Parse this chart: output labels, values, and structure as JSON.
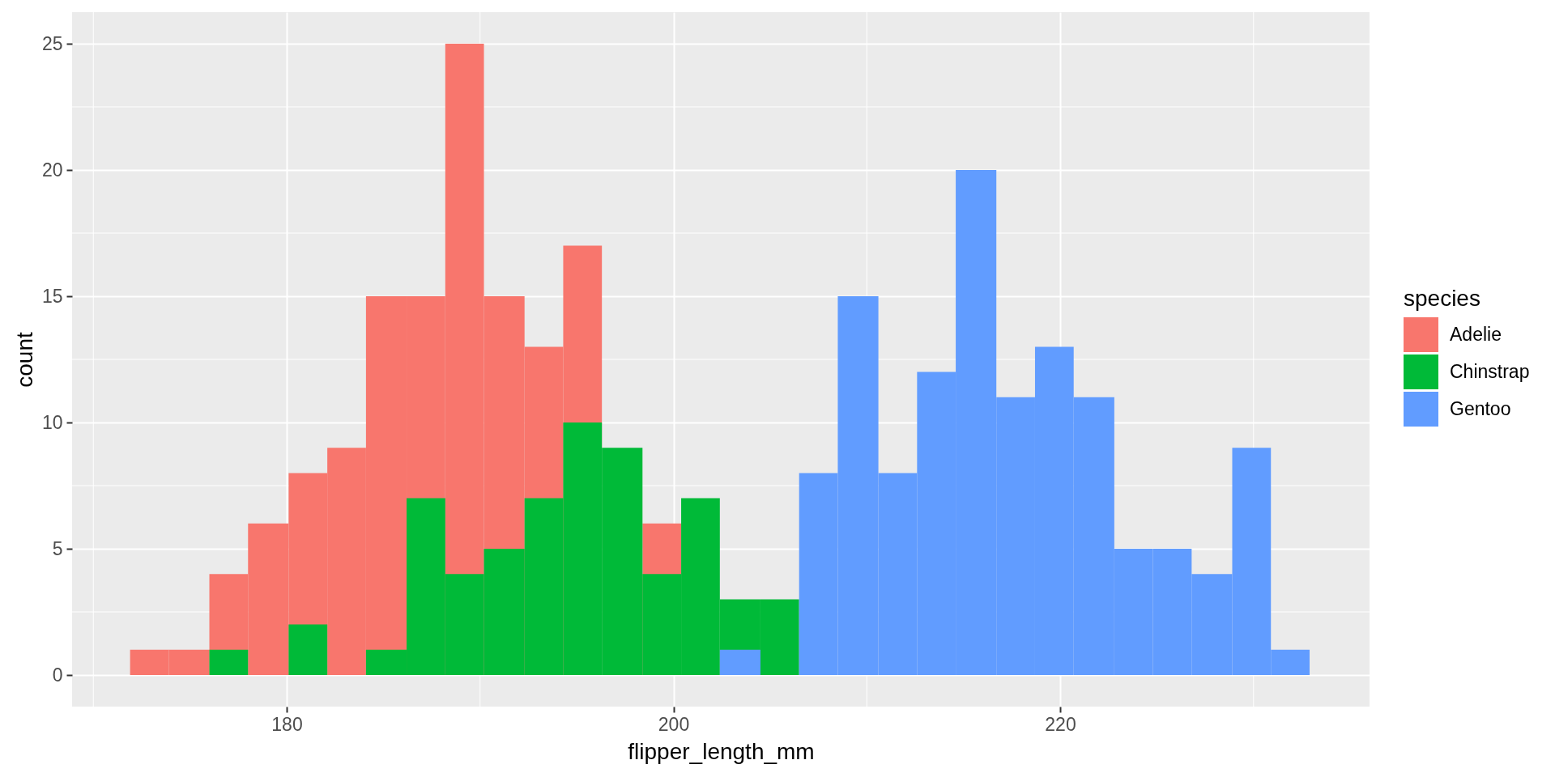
{
  "chart_data": {
    "type": "histogram",
    "xlabel": "flipper_length_mm",
    "ylabel": "count",
    "legend_title": "species",
    "legend": "right",
    "grid": true,
    "xlim": [
      168.9,
      236.0
    ],
    "xticks": [
      180,
      200,
      220
    ],
    "ylim": [
      -1.25,
      26.25
    ],
    "yticks": [
      0,
      5,
      10,
      15,
      20,
      25
    ],
    "bins": [
      171.9,
      173.9,
      176.0,
      178.0,
      180.1,
      182.1,
      184.1,
      186.2,
      188.2,
      190.2,
      192.3,
      194.3,
      196.3,
      198.4,
      200.4,
      202.4,
      204.5,
      206.5,
      208.5,
      210.6,
      212.6,
      214.6,
      216.7,
      218.7,
      220.7,
      222.8,
      224.8,
      226.8,
      228.9,
      230.9,
      232.9
    ],
    "series": [
      {
        "name": "Adelie",
        "color": "#f8766d",
        "values": [
          1,
          1,
          4,
          6,
          8,
          9,
          15,
          15,
          25,
          15,
          13,
          17,
          null,
          6,
          null,
          null,
          null,
          null,
          null,
          null,
          null,
          null,
          null,
          null,
          null,
          null,
          null,
          null,
          null,
          null
        ]
      },
      {
        "name": "Chinstrap",
        "color": "#00ba38",
        "values": [
          0,
          0,
          1,
          0,
          2,
          0,
          1,
          7,
          4,
          5,
          7,
          10,
          9,
          4,
          7,
          3,
          3,
          null,
          null,
          null,
          null,
          null,
          null,
          null,
          null,
          null,
          null,
          null,
          null,
          null
        ]
      },
      {
        "name": "Gentoo",
        "color": "#619cff",
        "values": [
          0,
          0,
          0,
          0,
          0,
          0,
          0,
          0,
          0,
          0,
          0,
          0,
          0,
          0,
          0,
          1,
          0,
          8,
          15,
          8,
          12,
          20,
          11,
          13,
          11,
          5,
          5,
          4,
          9,
          1
        ]
      }
    ]
  }
}
